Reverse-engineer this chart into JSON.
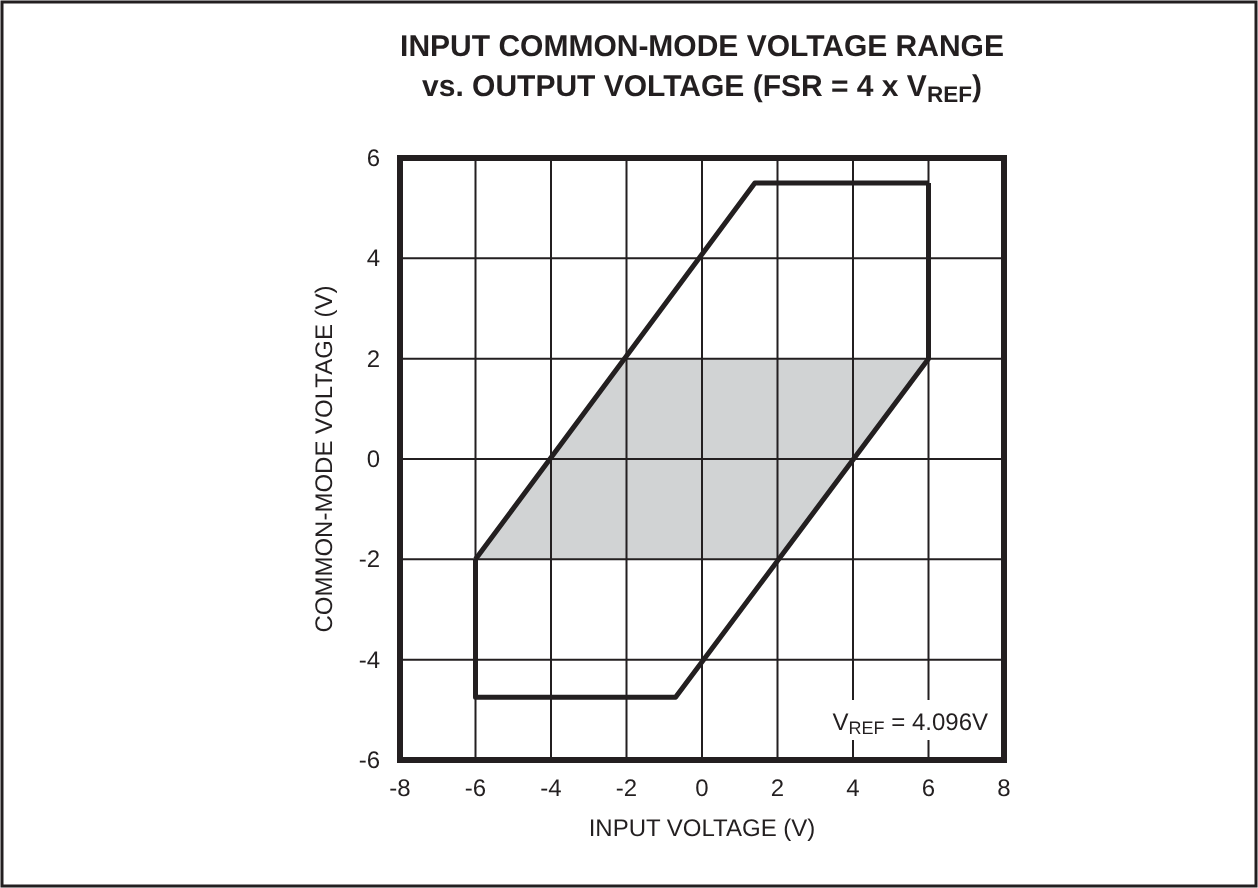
{
  "chart_data": {
    "type": "line",
    "title": "INPUT COMMON-MODE VOLTAGE RANGE\nvs. OUTPUT VOLTAGE (FSR = 4 x V$_{REF}$)",
    "xlabel": "INPUT VOLTAGE (V)",
    "ylabel": "COMMON-MODE VOLTAGE (V)",
    "xlim": [
      -8,
      8
    ],
    "xticks": [
      -8,
      -6,
      -4,
      -2,
      0,
      2,
      4,
      6,
      8
    ],
    "ylim": [
      -6,
      6
    ],
    "yticks": [
      -6,
      -4,
      -2,
      0,
      2,
      4,
      6
    ],
    "grid": true,
    "marker": "none",
    "line_style": "solid",
    "annotations": [
      "V$_{REF}$ = 4.096V"
    ],
    "series": [
      {
        "color": "#d1d3d4",
        "x": [
          -6,
          -2,
          2,
          6
        ],
        "values": [
          null,
          null,
          null,
          null
        ],
        "lower": [
          -2,
          -2,
          -2,
          2
        ],
        "upper": [
          -2,
          2,
          2,
          2
        ]
      },
      {
        "color": "#231f20",
        "x": [
          -6,
          -6,
          -0.7,
          6,
          6
        ],
        "values": [
          -2,
          -4.75,
          -4.75,
          2,
          5.5
        ]
      },
      {
        "color": "#231f20",
        "x": [
          -6,
          1.4,
          6
        ],
        "values": [
          -2,
          5.5,
          5.5
        ]
      }
    ]
  }
}
